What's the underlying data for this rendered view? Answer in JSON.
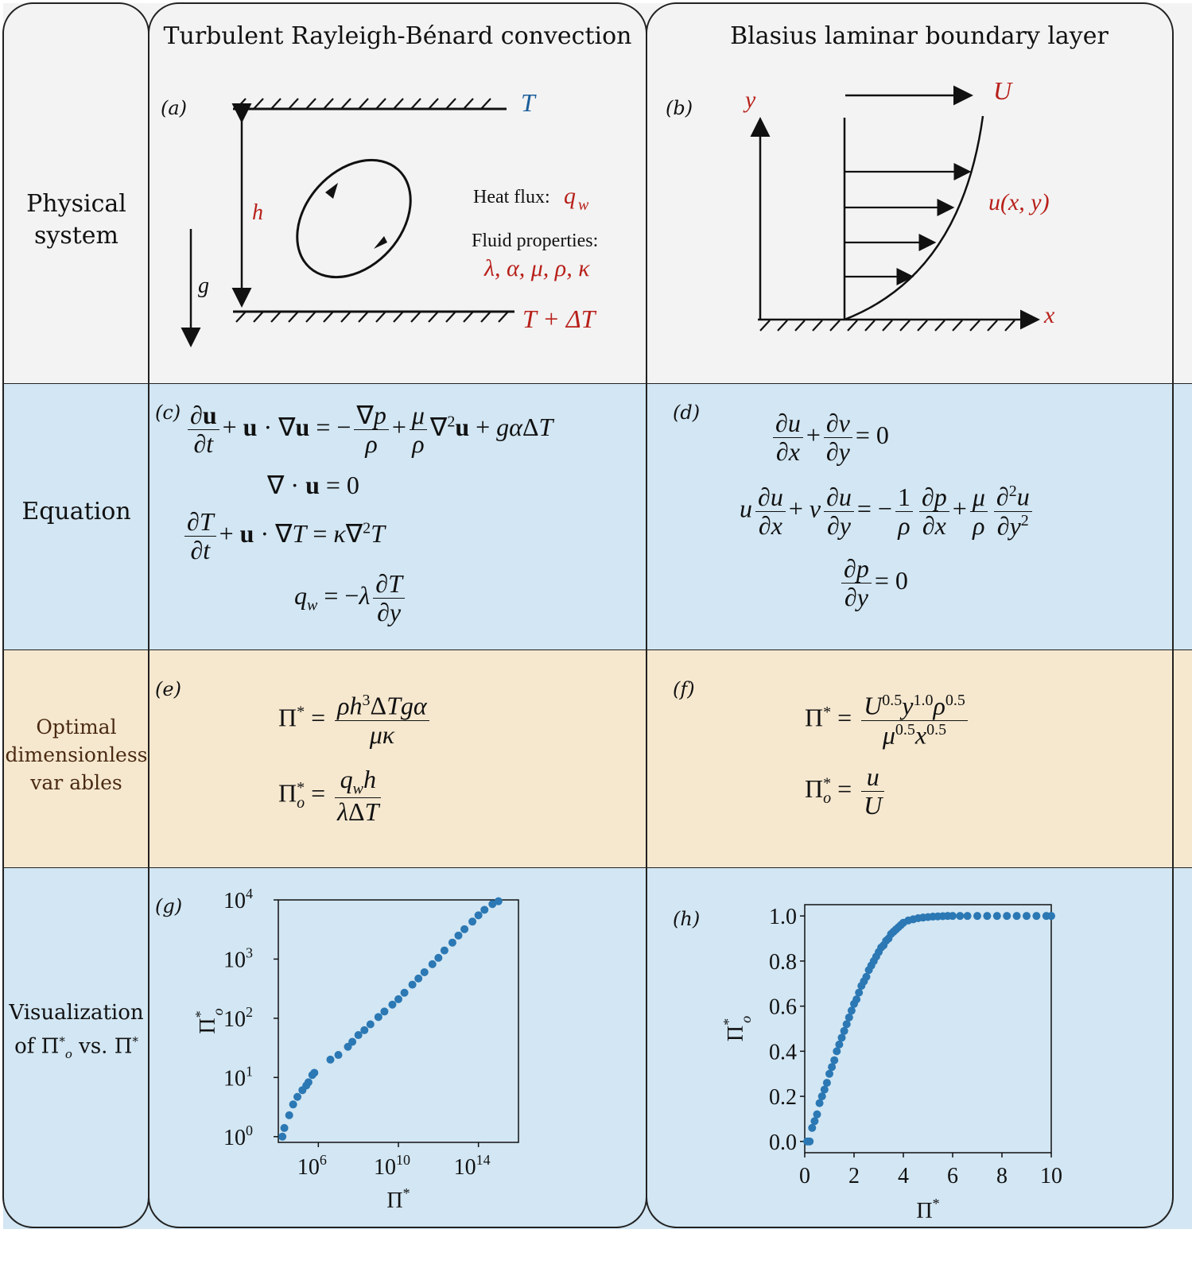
{
  "columns": {
    "left_title": "Turbulent Rayleigh-Bénard convection",
    "right_title": "Blasius laminar boundary layer"
  },
  "rows": {
    "physical": [
      "Physical",
      "system"
    ],
    "equation": "Equation",
    "optimal": [
      "Optimal",
      "dimensionless",
      "var ables"
    ],
    "visual_line1": "Visualization",
    "visual_line2_prefix": "of ",
    "visual_line2_mid": " vs. "
  },
  "panel_labels": [
    "(a)",
    "(b)",
    "(c)",
    "(d)",
    "(e)",
    "(f)",
    "(g)",
    "(h)"
  ],
  "panel_a": {
    "top_label": "T",
    "bottom_label": "T + ΔT",
    "height_label": "h",
    "gravity_label": "g",
    "heat_flux_label": "Heat flux:",
    "heat_flux_symbol": "q",
    "heat_flux_sub": "w",
    "fluid_label": "Fluid properties:",
    "fluid_symbols": "λ, α, μ, ρ, κ"
  },
  "panel_b": {
    "velocity_label": "U",
    "y_label": "y",
    "x_label": "x",
    "profile_label": "u(x, y)"
  },
  "colors": {
    "accent_red": "#b8201a",
    "accent_blue": "#1b5e9a",
    "marker": "#2b78b4",
    "physical_band": "#f3f3f3",
    "equation_band": "#d2e6f3",
    "optimal_band": "#f6e8cf"
  },
  "chart_data": [
    {
      "type": "scatter",
      "panel": "(g)",
      "xscale": "log",
      "yscale": "log",
      "xlabel": "Π*",
      "ylabel": "Π*_o",
      "xlim": [
        10000.0,
        1e+16
      ],
      "ylim": [
        0.8,
        10000.0
      ],
      "xticks": [
        1000000.0,
        10000000000.0,
        100000000000000.0
      ],
      "xtick_labels": [
        "10^6",
        "10^10",
        "10^14"
      ],
      "yticks": [
        1,
        10,
        100,
        1000,
        10000
      ],
      "ytick_labels": [
        "10^0",
        "10^1",
        "10^2",
        "10^3",
        "10^4"
      ],
      "x": [
        16000.0,
        20000.0,
        35000.0,
        55000.0,
        90000.0,
        160000.0,
        250000.0,
        320000.0,
        500000.0,
        630000.0,
        4000000.0,
        10000000.0,
        30000000.0,
        50000000.0,
        100000000.0,
        200000000.0,
        400000000.0,
        1000000000.0,
        2000000000.0,
        5000000000.0,
        10000000000.0,
        20000000000.0,
        50000000000.0,
        100000000000.0,
        200000000000.0,
        500000000000.0,
        1000000000000.0,
        2000000000000.0,
        5000000000000.0,
        10000000000000.0,
        20000000000000.0,
        50000000000000.0,
        100000000000000.0,
        200000000000000.0,
        500000000000000.0,
        1000000000000000.0
      ],
      "y": [
        1.0,
        1.4,
        2.3,
        3.5,
        4.7,
        6.1,
        7.3,
        8.3,
        11,
        12,
        20,
        24,
        33,
        40,
        52,
        63,
        79,
        105,
        130,
        170,
        210,
        270,
        370,
        470,
        600,
        820,
        1050,
        1400,
        1900,
        2500,
        3200,
        4300,
        5500,
        6800,
        8500,
        9500
      ],
      "color": "#2b78b4"
    },
    {
      "type": "scatter",
      "panel": "(h)",
      "xlabel": "Π*",
      "ylabel": "Π*_o",
      "xlim": [
        0,
        10
      ],
      "ylim": [
        -0.05,
        1.05
      ],
      "xticks": [
        0,
        2,
        4,
        6,
        8,
        10
      ],
      "yticks": [
        0.0,
        0.2,
        0.4,
        0.6,
        0.8,
        1.0
      ],
      "x": [
        0.1,
        0.2,
        0.3,
        0.4,
        0.5,
        0.6,
        0.7,
        0.8,
        0.9,
        1.0,
        1.1,
        1.2,
        1.3,
        1.4,
        1.5,
        1.6,
        1.7,
        1.8,
        1.9,
        2.0,
        2.1,
        2.2,
        2.3,
        2.4,
        2.5,
        2.6,
        2.7,
        2.8,
        2.9,
        3.0,
        3.1,
        3.2,
        3.3,
        3.4,
        3.5,
        3.6,
        3.7,
        3.8,
        3.9,
        4.0,
        4.2,
        4.4,
        4.6,
        4.8,
        5.0,
        5.2,
        5.4,
        5.6,
        5.8,
        6.0,
        6.3,
        6.6,
        7.0,
        7.4,
        7.8,
        8.2,
        8.6,
        9.0,
        9.4,
        9.8,
        10.0
      ],
      "y": [
        0.0,
        0.0,
        0.06,
        0.09,
        0.12,
        0.17,
        0.2,
        0.23,
        0.26,
        0.3,
        0.33,
        0.36,
        0.4,
        0.43,
        0.46,
        0.49,
        0.52,
        0.55,
        0.58,
        0.61,
        0.63,
        0.66,
        0.69,
        0.71,
        0.73,
        0.76,
        0.78,
        0.8,
        0.82,
        0.84,
        0.86,
        0.87,
        0.89,
        0.9,
        0.92,
        0.93,
        0.94,
        0.95,
        0.96,
        0.97,
        0.98,
        0.985,
        0.99,
        0.993,
        0.995,
        0.997,
        0.998,
        0.999,
        1.0,
        1.0,
        1.0,
        1.0,
        1.0,
        1.0,
        1.0,
        1.0,
        1.0,
        1.0,
        1.0,
        1.0,
        1.0
      ],
      "color": "#2b78b4"
    }
  ]
}
